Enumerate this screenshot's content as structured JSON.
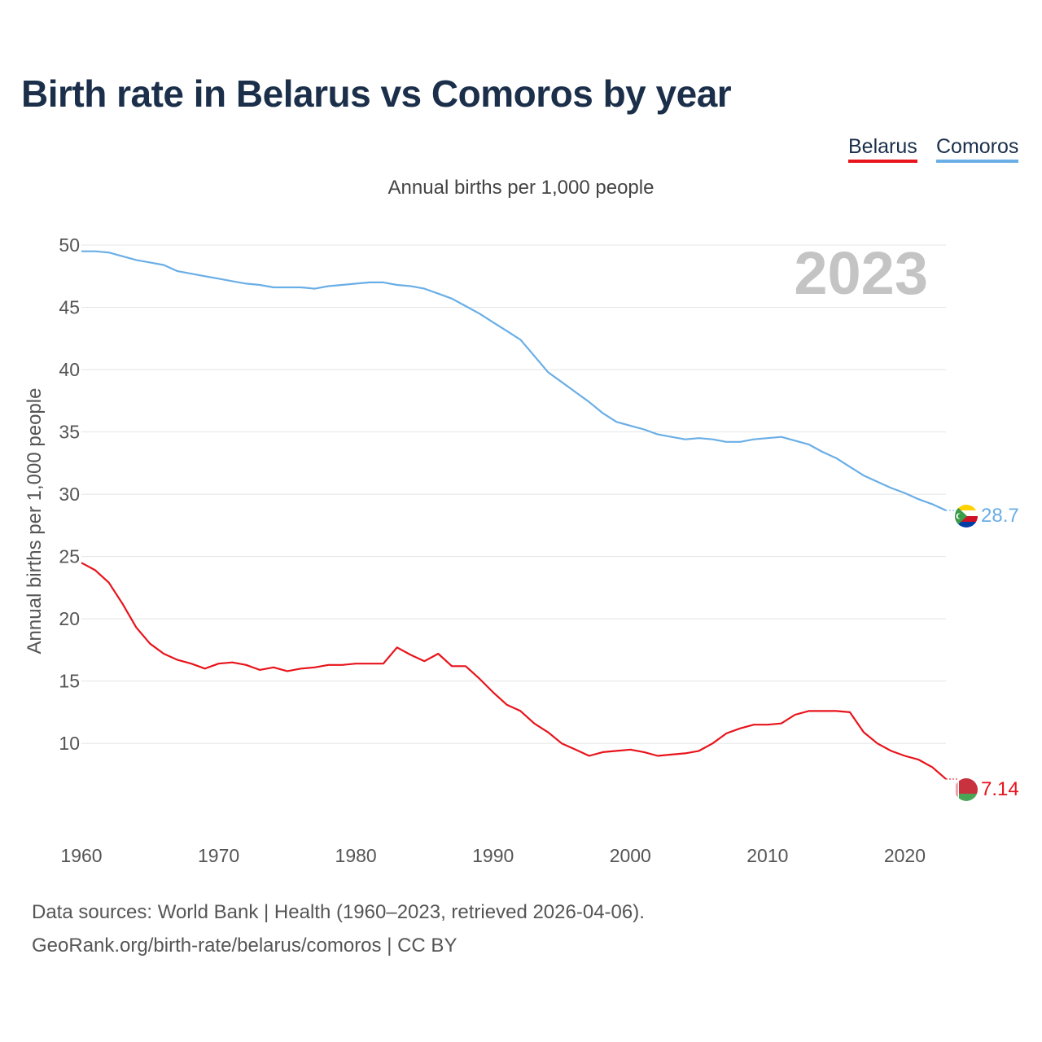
{
  "title": "Birth rate in Belarus vs Comoros by year",
  "legend": [
    {
      "label": "Belarus",
      "color": "#e8131b"
    },
    {
      "label": "Comoros",
      "color": "#6aaee6"
    }
  ],
  "footer": {
    "line1": "Data sources: World Bank | Health (1960–2023, retrieved 2026-04-06).",
    "line2": "GeoRank.org/birth-rate/belarus/comoros | CC BY"
  },
  "chart_data": {
    "type": "line",
    "title": "Annual births per 1,000 people",
    "ylabel": "Annual births per 1,000 people",
    "xlabel": "",
    "year_label": "2023",
    "xlim": [
      1960,
      2023
    ],
    "ylim": [
      4,
      50
    ],
    "y_ticks": [
      "10",
      "15",
      "20",
      "25",
      "30",
      "35",
      "40",
      "45",
      "50"
    ],
    "x_ticks": [
      "1960",
      "1970",
      "1980",
      "1990",
      "2000",
      "2010",
      "2020"
    ],
    "x": [
      1960,
      1961,
      1962,
      1963,
      1964,
      1965,
      1966,
      1967,
      1968,
      1969,
      1970,
      1971,
      1972,
      1973,
      1974,
      1975,
      1976,
      1977,
      1978,
      1979,
      1980,
      1981,
      1982,
      1983,
      1984,
      1985,
      1986,
      1987,
      1988,
      1989,
      1990,
      1991,
      1992,
      1993,
      1994,
      1995,
      1996,
      1997,
      1998,
      1999,
      2000,
      2001,
      2002,
      2003,
      2004,
      2005,
      2006,
      2007,
      2008,
      2009,
      2010,
      2011,
      2012,
      2013,
      2014,
      2015,
      2016,
      2017,
      2018,
      2019,
      2020,
      2021,
      2022,
      2023
    ],
    "series": [
      {
        "name": "Belarus",
        "color": "#e8131b",
        "end_label": "7.14",
        "values": [
          24.5,
          23.9,
          22.9,
          21.2,
          19.3,
          18.0,
          17.2,
          16.7,
          16.4,
          16.0,
          16.4,
          16.5,
          16.3,
          15.9,
          16.1,
          15.8,
          16.0,
          16.1,
          16.3,
          16.3,
          16.4,
          16.4,
          16.4,
          17.7,
          17.1,
          16.6,
          17.2,
          16.2,
          16.2,
          15.2,
          14.1,
          13.1,
          12.6,
          11.6,
          10.9,
          10.0,
          9.5,
          9.0,
          9.3,
          9.4,
          9.5,
          9.3,
          9.0,
          9.1,
          9.2,
          9.4,
          10.0,
          10.8,
          11.2,
          11.5,
          11.5,
          11.6,
          12.3,
          12.6,
          12.6,
          12.6,
          12.5,
          10.9,
          10.0,
          9.4,
          9.0,
          8.7,
          8.1,
          7.14
        ]
      },
      {
        "name": "Comoros",
        "color": "#6aaee6",
        "end_label": "28.7",
        "values": [
          49.5,
          49.5,
          49.4,
          49.1,
          48.8,
          48.6,
          48.4,
          47.9,
          47.7,
          47.5,
          47.3,
          47.1,
          46.9,
          46.8,
          46.6,
          46.6,
          46.6,
          46.5,
          46.7,
          46.8,
          46.9,
          47.0,
          47.0,
          46.8,
          46.7,
          46.5,
          46.1,
          45.7,
          45.1,
          44.5,
          43.8,
          43.1,
          42.4,
          41.1,
          39.8,
          39.0,
          38.2,
          37.4,
          36.5,
          35.8,
          35.5,
          35.2,
          34.8,
          34.6,
          34.4,
          34.5,
          34.4,
          34.2,
          34.2,
          34.4,
          34.5,
          34.6,
          34.3,
          34.0,
          33.4,
          32.9,
          32.2,
          31.5,
          31.0,
          30.5,
          30.1,
          29.6,
          29.2,
          28.7
        ]
      }
    ]
  }
}
